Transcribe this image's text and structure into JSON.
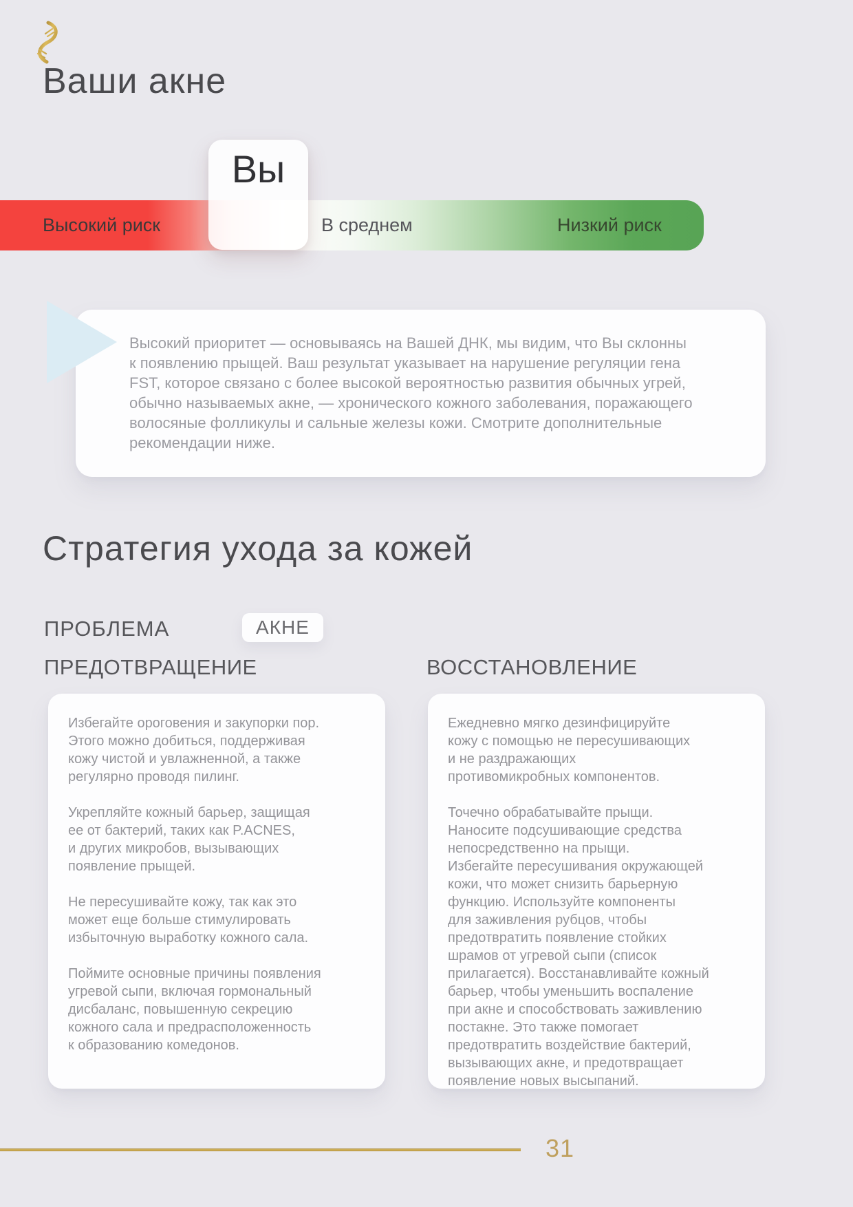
{
  "page": {
    "background_color": "#e9e8ed"
  },
  "header": {
    "logo": "dna-helix-gold",
    "title": "Ваши акне"
  },
  "risk_scale": {
    "marker_label": "Вы",
    "high_label": "Высокий риск",
    "average_label": "В среднем",
    "low_label": "Низкий риск",
    "high_color": "#f4433e",
    "low_color": "#5ba757"
  },
  "result_card": {
    "lines": [
      "Высокий приоритет — основываясь на Вашей ДНК, мы видим, что Вы склонны",
      "к появлению прыщей. Ваш результат указывает на нарушение регуляции гена",
      "FST, которое связано с более высокой вероятностью развития обычных угрей,",
      "обычно называемых акне, — хронического кожного заболевания, поражающего",
      "волосяные фолликулы и сальные железы кожи. Смотрите дополнительные",
      "рекомендации ниже."
    ]
  },
  "strategy": {
    "title": "Стратегия ухода за кожей",
    "problem_label": "ПРОБЛЕМА",
    "problem_value": "АКНЕ",
    "prevention": {
      "heading": "ПРЕДОТВРАЩЕНИЕ",
      "paragraphs": [
        [
          "Избегайте ороговения и закупорки пор.",
          "Этого можно добиться, поддерживая",
          "кожу чистой и увлажненной, а также",
          "регулярно проводя пилинг."
        ],
        [
          "Укрепляйте кожный барьер, защищая",
          "ее от бактерий, таких как P.ACNES,",
          "и других микробов, вызывающих",
          "появление прыщей."
        ],
        [
          "Не пересушивайте кожу, так как это",
          "может еще больше стимулировать",
          "избыточную выработку кожного сала."
        ],
        [
          "Поймите основные причины появления",
          "угревой сыпи, включая гормональный",
          "дисбаланс, повышенную секрецию",
          "кожного сала и предрасположенность",
          "к образованию комедонов."
        ]
      ]
    },
    "restoration": {
      "heading": "ВОССТАНОВЛЕНИЕ",
      "paragraphs": [
        [
          "Ежедневно мягко дезинфицируйте",
          "кожу с помощью не пересушивающих",
          "и не раздражающих",
          "противомикробных компонентов."
        ],
        [
          "Точечно обрабатывайте прыщи.",
          "Наносите подсушивающие средства",
          "непосредственно на прыщи.",
          "Избегайте пересушивания окружающей",
          "кожи, что может снизить барьерную",
          "функцию. Используйте компоненты",
          "для заживления рубцов, чтобы",
          "предотвратить появление стойких",
          "шрамов от угревой сыпи (список",
          "прилагается). Восстанавливайте кожный",
          "барьер, чтобы уменьшить воспаление",
          "при акне и способствовать заживлению",
          "постакне. Это также помогает",
          "предотвратить воздействие бактерий,",
          "вызывающих акне, и предотвращает",
          "появление новых высыпаний."
        ]
      ]
    }
  },
  "footer": {
    "page_number": "31",
    "accent_color": "#bfa05e"
  }
}
